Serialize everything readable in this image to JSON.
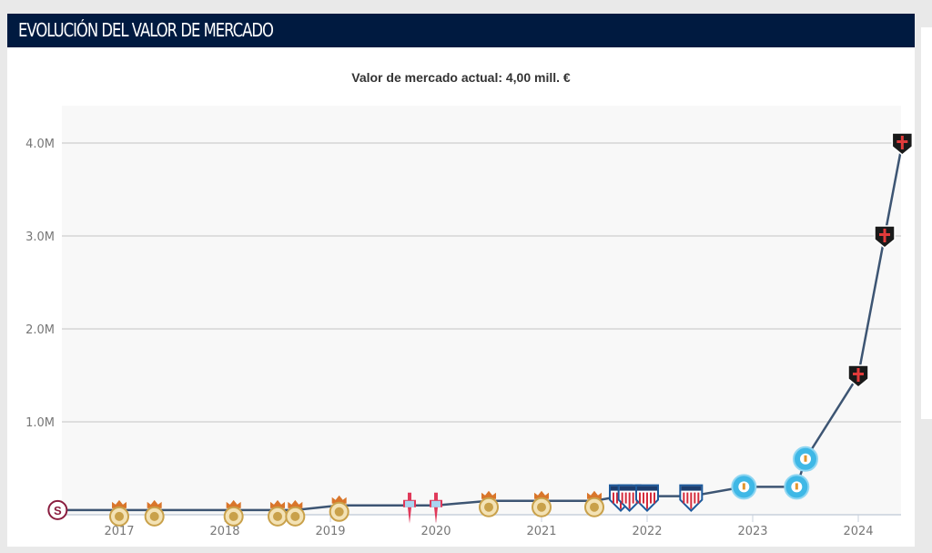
{
  "header": {
    "title": "EVOLUCIÓN DEL VALOR DE MERCADO"
  },
  "chart_data": {
    "type": "line",
    "title": "Valor de mercado actual: 4,00 mill. €",
    "xlabel": "",
    "ylabel": "",
    "x_ticks": [
      "2017",
      "2018",
      "2019",
      "2020",
      "2021",
      "2022",
      "2023",
      "2024"
    ],
    "y_ticks": [
      "1.0M",
      "2.0M",
      "3.0M",
      "4.0M"
    ],
    "y_tick_values": [
      1.0,
      2.0,
      3.0,
      4.0
    ],
    "ylim": [
      0,
      4.4
    ],
    "xlim": [
      "2016-06",
      "2024-06"
    ],
    "grid": true,
    "line_color": "#3d5573",
    "points": [
      {
        "date": "2016-06",
        "value": 0.05,
        "crest": "saprissa-crest"
      },
      {
        "date": "2017-01",
        "value": 0.05,
        "crest": "gold-crown-crest"
      },
      {
        "date": "2017-05",
        "value": 0.05,
        "crest": "gold-crown-crest"
      },
      {
        "date": "2018-02",
        "value": 0.05,
        "crest": "gold-crown-crest"
      },
      {
        "date": "2018-07",
        "value": 0.05,
        "crest": "gold-crown-crest"
      },
      {
        "date": "2018-09",
        "value": 0.05,
        "crest": "gold-crown-crest"
      },
      {
        "date": "2019-02",
        "value": 0.1,
        "crest": "gold-crown-crest"
      },
      {
        "date": "2019-10",
        "value": 0.1,
        "crest": "celta-crest"
      },
      {
        "date": "2020-01",
        "value": 0.1,
        "crest": "celta-crest"
      },
      {
        "date": "2020-07",
        "value": 0.15,
        "crest": "gold-crown-crest"
      },
      {
        "date": "2021-01",
        "value": 0.15,
        "crest": "gold-crown-crest"
      },
      {
        "date": "2021-07",
        "value": 0.15,
        "crest": "gold-crown-crest"
      },
      {
        "date": "2021-10",
        "value": 0.2,
        "crest": "lugo-crest"
      },
      {
        "date": "2021-11",
        "value": 0.2,
        "crest": "lugo-crest"
      },
      {
        "date": "2022-01",
        "value": 0.2,
        "crest": "lugo-crest"
      },
      {
        "date": "2022-06",
        "value": 0.2,
        "crest": "lugo-crest"
      },
      {
        "date": "2022-12",
        "value": 0.3,
        "crest": "ibiza-crest"
      },
      {
        "date": "2023-06",
        "value": 0.3,
        "crest": "ibiza-crest"
      },
      {
        "date": "2023-07",
        "value": 0.6,
        "crest": "ibiza-crest"
      },
      {
        "date": "2024-01",
        "value": 1.5,
        "crest": "black-shield-crest"
      },
      {
        "date": "2024-04",
        "value": 3.0,
        "crest": "black-shield-crest"
      },
      {
        "date": "2024-06",
        "value": 4.0,
        "crest": "black-shield-crest"
      }
    ]
  }
}
